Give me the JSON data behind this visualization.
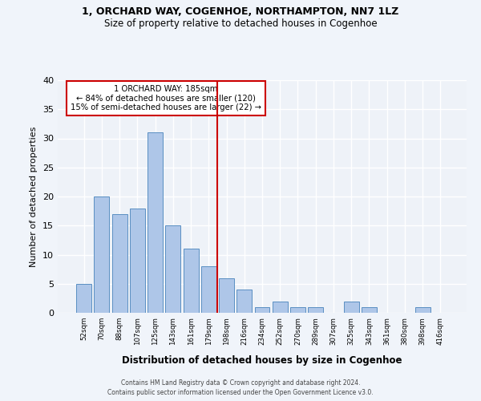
{
  "title": "1, ORCHARD WAY, COGENHOE, NORTHAMPTON, NN7 1LZ",
  "subtitle": "Size of property relative to detached houses in Cogenhoe",
  "xlabel": "Distribution of detached houses by size in Cogenhoe",
  "ylabel": "Number of detached properties",
  "bar_labels": [
    "52sqm",
    "70sqm",
    "88sqm",
    "107sqm",
    "125sqm",
    "143sqm",
    "161sqm",
    "179sqm",
    "198sqm",
    "216sqm",
    "234sqm",
    "252sqm",
    "270sqm",
    "289sqm",
    "307sqm",
    "325sqm",
    "343sqm",
    "361sqm",
    "380sqm",
    "398sqm",
    "416sqm"
  ],
  "bar_values": [
    5,
    20,
    17,
    18,
    31,
    15,
    11,
    8,
    6,
    4,
    1,
    2,
    1,
    1,
    0,
    2,
    1,
    0,
    0,
    1,
    0
  ],
  "bar_color": "#aec6e8",
  "bar_edgecolor": "#5a8fc2",
  "vline_x": 7.5,
  "vline_color": "#cc0000",
  "ylim": [
    0,
    40
  ],
  "yticks": [
    0,
    5,
    10,
    15,
    20,
    25,
    30,
    35,
    40
  ],
  "annotation_title": "1 ORCHARD WAY: 185sqm",
  "annotation_line1": "← 84% of detached houses are smaller (120)",
  "annotation_line2": "15% of semi-detached houses are larger (22) →",
  "annotation_box_color": "#ffffff",
  "annotation_box_edgecolor": "#cc0000",
  "footer_line1": "Contains HM Land Registry data © Crown copyright and database right 2024.",
  "footer_line2": "Contains public sector information licensed under the Open Government Licence v3.0.",
  "bg_color": "#eef2f8",
  "grid_color": "#ffffff",
  "title_fontsize": 9,
  "subtitle_fontsize": 8.5
}
